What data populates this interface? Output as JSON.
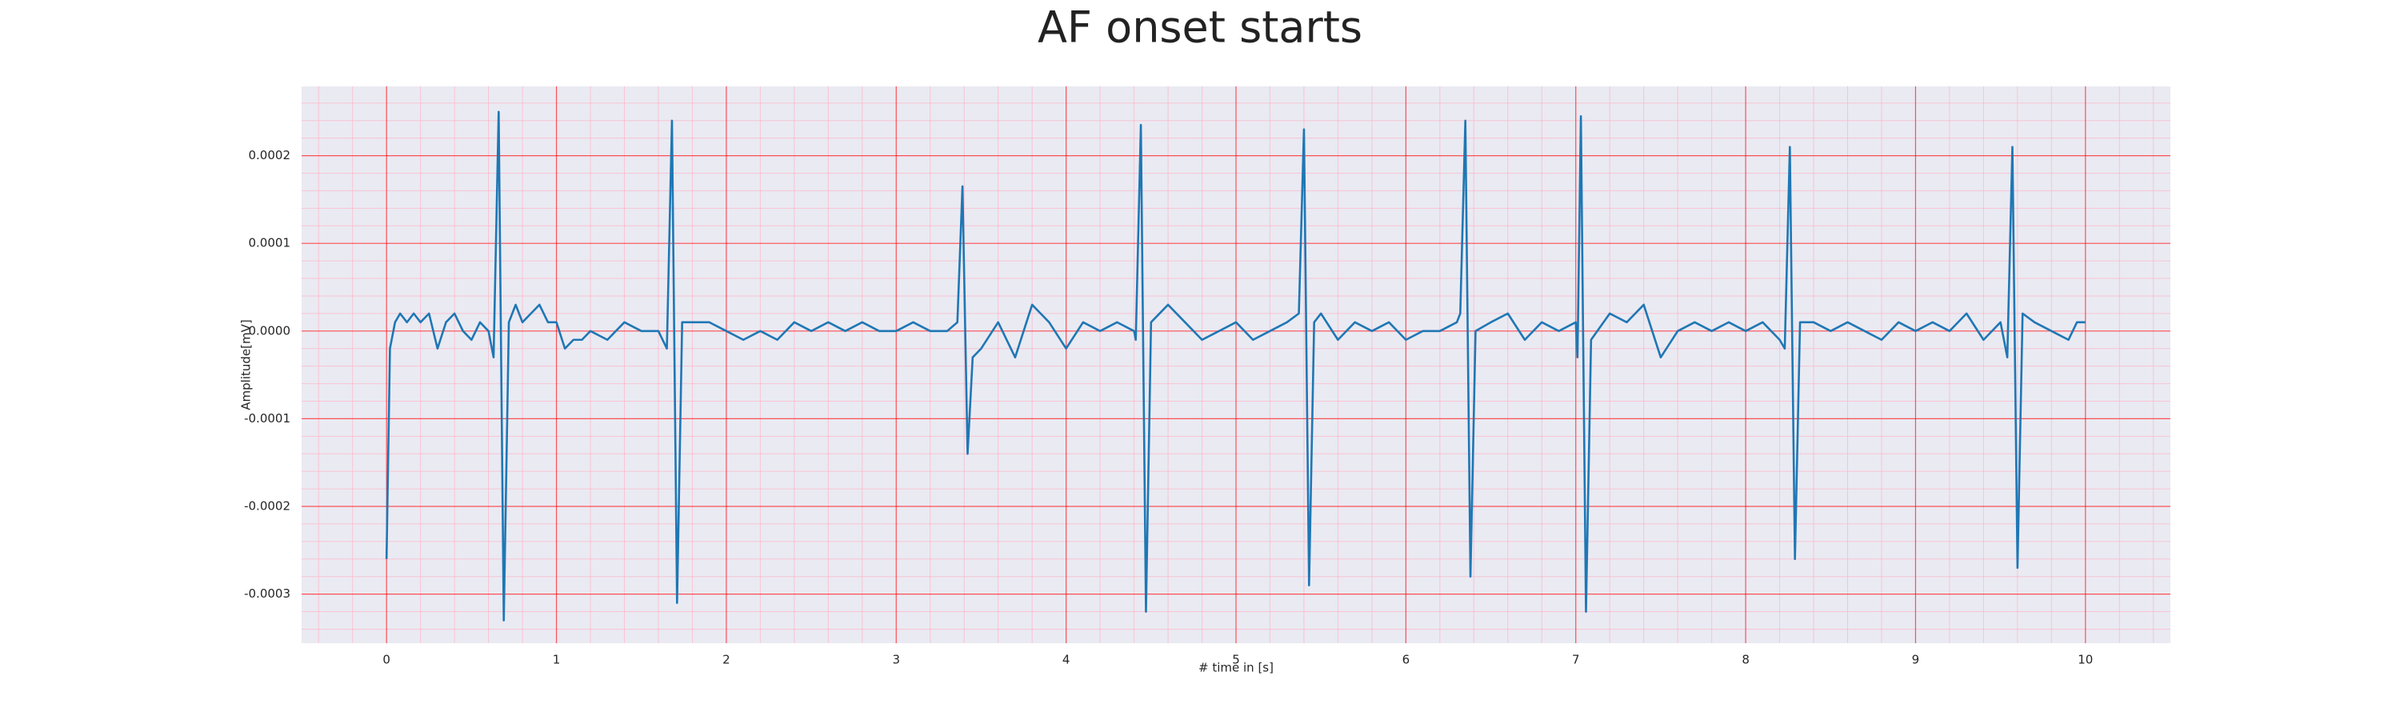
{
  "chart_data": {
    "type": "line",
    "title": "AF onset starts",
    "x_label": "# time in [s]",
    "y_label": "Amplitude[mV]",
    "xlim": [
      -0.5,
      10.5
    ],
    "ylim": [
      -0.000356,
      0.000279
    ],
    "xticks": [
      0,
      1,
      2,
      3,
      4,
      5,
      6,
      7,
      8,
      9,
      10
    ],
    "yticks": [
      -0.0003,
      -0.0002,
      -0.0001,
      {
        "value": 0,
        "label": "0.0000"
      },
      0.0001,
      0.0002
    ],
    "grid": true,
    "grid_color": "#ff0000",
    "minor_grid": true,
    "minor_divisions": 5,
    "minor_grid_color": "#ffb3c6",
    "background": "#eaeaf2",
    "series": [
      {
        "color": "#1f77b4",
        "x": [
          0,
          0.02,
          0.05,
          0.08,
          0.12,
          0.16,
          0.2,
          0.25,
          0.3,
          0.35,
          0.4,
          0.45,
          0.5,
          0.55,
          0.6,
          0.63,
          0.66,
          0.69,
          0.72,
          0.76,
          0.8,
          0.85,
          0.9,
          0.95,
          1.0,
          1.05,
          1.1,
          1.15,
          1.2,
          1.3,
          1.4,
          1.5,
          1.6,
          1.65,
          1.68,
          1.71,
          1.74,
          1.8,
          1.9,
          2.0,
          2.1,
          2.2,
          2.3,
          2.4,
          2.5,
          2.6,
          2.7,
          2.8,
          2.9,
          3.0,
          3.1,
          3.2,
          3.3,
          3.36,
          3.39,
          3.42,
          3.45,
          3.5,
          3.6,
          3.7,
          3.8,
          3.85,
          3.9,
          4.0,
          4.1,
          4.2,
          4.3,
          4.4,
          4.41,
          4.44,
          4.47,
          4.5,
          4.6,
          4.7,
          4.8,
          4.9,
          5.0,
          5.1,
          5.2,
          5.3,
          5.37,
          5.4,
          5.43,
          5.46,
          5.5,
          5.6,
          5.7,
          5.8,
          5.9,
          6.0,
          6.1,
          6.2,
          6.3,
          6.32,
          6.35,
          6.38,
          6.41,
          6.5,
          6.6,
          6.7,
          6.8,
          6.9,
          7.0,
          7.01,
          7.03,
          7.06,
          7.09,
          7.2,
          7.3,
          7.4,
          7.5,
          7.6,
          7.7,
          7.8,
          7.9,
          8.0,
          8.1,
          8.2,
          8.23,
          8.26,
          8.29,
          8.32,
          8.4,
          8.5,
          8.6,
          8.7,
          8.8,
          8.9,
          9.0,
          9.1,
          9.2,
          9.3,
          9.4,
          9.5,
          9.54,
          9.57,
          9.6,
          9.63,
          9.7,
          9.8,
          9.9,
          9.95,
          10.0
        ],
        "values": [
          -0.00026,
          -2e-05,
          1e-05,
          2e-05,
          1e-05,
          2e-05,
          1e-05,
          2e-05,
          -2e-05,
          1e-05,
          2e-05,
          0,
          -1e-05,
          1e-05,
          0,
          -3e-05,
          0.00025,
          -0.00033,
          1e-05,
          3e-05,
          1e-05,
          2e-05,
          3e-05,
          1e-05,
          1e-05,
          -2e-05,
          -1e-05,
          -1e-05,
          0,
          -1e-05,
          1e-05,
          0,
          0,
          -2e-05,
          0.00024,
          -0.00031,
          1e-05,
          1e-05,
          1e-05,
          0,
          -1e-05,
          0,
          -1e-05,
          1e-05,
          0,
          1e-05,
          0,
          1e-05,
          0,
          0,
          1e-05,
          0,
          0,
          1e-05,
          0.000165,
          -0.00014,
          -3e-05,
          -2e-05,
          1e-05,
          -3e-05,
          3e-05,
          2e-05,
          1e-05,
          -2e-05,
          1e-05,
          0,
          1e-05,
          0,
          -1e-05,
          0.000235,
          -0.00032,
          1e-05,
          3e-05,
          1e-05,
          -1e-05,
          0,
          1e-05,
          -1e-05,
          0,
          1e-05,
          2e-05,
          0.00023,
          -0.00029,
          1e-05,
          2e-05,
          -1e-05,
          1e-05,
          0,
          1e-05,
          -1e-05,
          0,
          0,
          1e-05,
          2e-05,
          0.00024,
          -0.00028,
          0,
          1e-05,
          2e-05,
          -1e-05,
          1e-05,
          0,
          1e-05,
          -3e-05,
          0.000245,
          -0.00032,
          -1e-05,
          2e-05,
          1e-05,
          3e-05,
          -3e-05,
          0,
          1e-05,
          0,
          1e-05,
          0,
          1e-05,
          -1e-05,
          -2e-05,
          0.00021,
          -0.00026,
          1e-05,
          1e-05,
          0,
          1e-05,
          0,
          -1e-05,
          1e-05,
          0,
          1e-05,
          0,
          2e-05,
          -1e-05,
          1e-05,
          -3e-05,
          0.00021,
          -0.00027,
          2e-05,
          1e-05,
          0,
          -1e-05,
          1e-05,
          1e-05
        ]
      }
    ]
  }
}
